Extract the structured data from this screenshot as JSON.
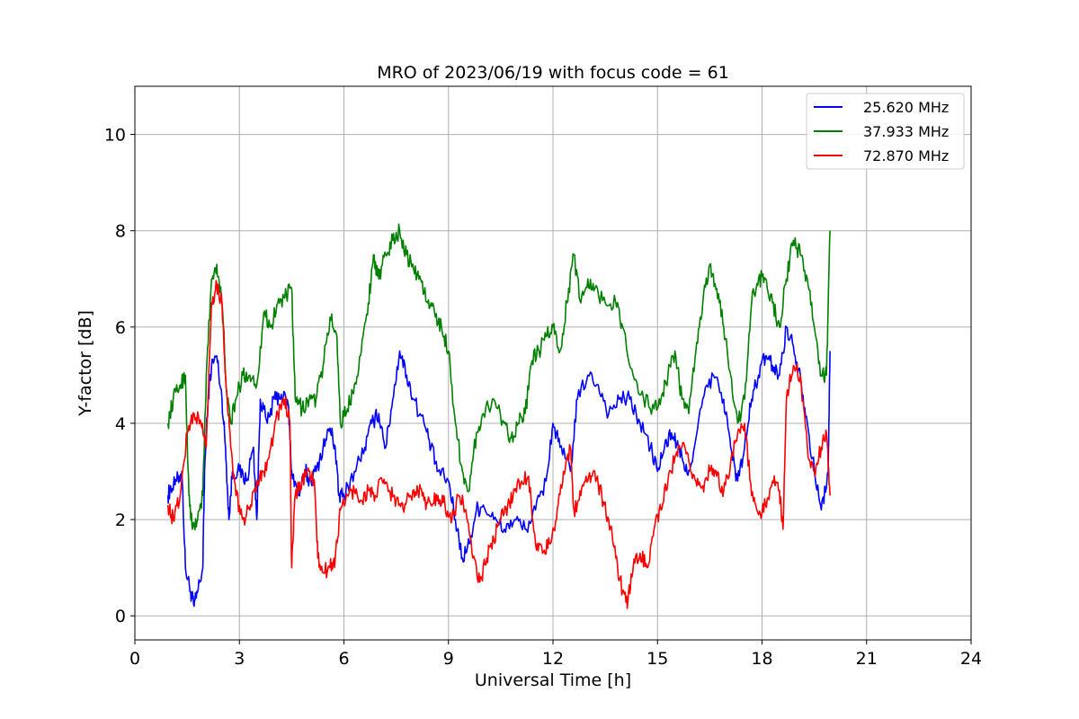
{
  "chart_data": {
    "type": "line",
    "title": "MRO of 2023/06/19 with focus code = 61",
    "xlabel": "Universal Time [h]",
    "ylabel": "Y-factor [dB]",
    "xlim": [
      0,
      24
    ],
    "ylim": [
      -0.5,
      11
    ],
    "xticks": [
      0,
      3,
      6,
      9,
      12,
      15,
      18,
      21,
      24
    ],
    "yticks": [
      0,
      2,
      4,
      6,
      8,
      10
    ],
    "grid": true,
    "legend_position": "top-right",
    "series": [
      {
        "name": "25.620 MHz",
        "color": "#0000ff",
        "points": [
          [
            0.95,
            2.5
          ],
          [
            1.0,
            2.6
          ],
          [
            1.2,
            2.8
          ],
          [
            1.35,
            3.0
          ],
          [
            1.45,
            1.0
          ],
          [
            1.6,
            0.5
          ],
          [
            1.7,
            0.2
          ],
          [
            1.8,
            0.5
          ],
          [
            1.95,
            1.0
          ],
          [
            2.0,
            3.0
          ],
          [
            2.1,
            4.5
          ],
          [
            2.2,
            5.2
          ],
          [
            2.35,
            5.4
          ],
          [
            2.5,
            4.5
          ],
          [
            2.6,
            3.5
          ],
          [
            2.7,
            2.0
          ],
          [
            2.8,
            3.0
          ],
          [
            3.0,
            3.0
          ],
          [
            3.2,
            2.8
          ],
          [
            3.4,
            3.5
          ],
          [
            3.5,
            2.0
          ],
          [
            3.6,
            4.5
          ],
          [
            3.8,
            4.0
          ],
          [
            4.0,
            4.5
          ],
          [
            4.2,
            4.6
          ],
          [
            4.4,
            4.4
          ],
          [
            4.5,
            3.0
          ],
          [
            4.7,
            2.5
          ],
          [
            4.9,
            3.0
          ],
          [
            5.0,
            2.8
          ],
          [
            5.2,
            3.0
          ],
          [
            5.4,
            3.5
          ],
          [
            5.6,
            3.9
          ],
          [
            5.75,
            3.5
          ],
          [
            5.85,
            2.5
          ],
          [
            6.0,
            2.5
          ],
          [
            6.3,
            3.0
          ],
          [
            6.6,
            3.5
          ],
          [
            6.8,
            4.0
          ],
          [
            7.0,
            4.2
          ],
          [
            7.2,
            3.5
          ],
          [
            7.4,
            4.5
          ],
          [
            7.6,
            5.5
          ],
          [
            7.8,
            5.0
          ],
          [
            8.0,
            4.5
          ],
          [
            8.3,
            4.0
          ],
          [
            8.5,
            3.5
          ],
          [
            8.7,
            3.0
          ],
          [
            9.0,
            2.8
          ],
          [
            9.2,
            2.0
          ],
          [
            9.4,
            1.2
          ],
          [
            9.6,
            1.5
          ],
          [
            9.8,
            2.2
          ],
          [
            10.0,
            2.3
          ],
          [
            10.3,
            2.0
          ],
          [
            10.6,
            1.8
          ],
          [
            10.9,
            2.0
          ],
          [
            11.2,
            1.8
          ],
          [
            11.5,
            2.2
          ],
          [
            11.8,
            2.8
          ],
          [
            12.0,
            4.0
          ],
          [
            12.2,
            3.5
          ],
          [
            12.5,
            3.0
          ],
          [
            12.7,
            4.5
          ],
          [
            13.0,
            5.0
          ],
          [
            13.3,
            4.8
          ],
          [
            13.6,
            4.2
          ],
          [
            13.9,
            4.5
          ],
          [
            14.2,
            4.5
          ],
          [
            14.5,
            4.0
          ],
          [
            14.8,
            3.5
          ],
          [
            15.0,
            3.0
          ],
          [
            15.2,
            3.5
          ],
          [
            15.4,
            3.8
          ],
          [
            15.6,
            3.5
          ],
          [
            15.8,
            3.0
          ],
          [
            16.0,
            3.2
          ],
          [
            16.3,
            4.5
          ],
          [
            16.6,
            5.0
          ],
          [
            16.9,
            4.5
          ],
          [
            17.1,
            3.5
          ],
          [
            17.3,
            2.8
          ],
          [
            17.5,
            3.5
          ],
          [
            17.7,
            4.5
          ],
          [
            17.9,
            5.0
          ],
          [
            18.1,
            5.4
          ],
          [
            18.3,
            5.2
          ],
          [
            18.5,
            5.0
          ],
          [
            18.7,
            6.0
          ],
          [
            18.9,
            5.6
          ],
          [
            19.1,
            5.0
          ],
          [
            19.3,
            4.0
          ],
          [
            19.5,
            3.0
          ],
          [
            19.7,
            2.2
          ],
          [
            19.9,
            3.0
          ],
          [
            19.95,
            5.5
          ]
        ]
      },
      {
        "name": "37.933 MHz",
        "color": "#008000",
        "points": [
          [
            0.95,
            4.0
          ],
          [
            1.1,
            4.5
          ],
          [
            1.3,
            4.8
          ],
          [
            1.45,
            5.0
          ],
          [
            1.55,
            2.5
          ],
          [
            1.65,
            1.8
          ],
          [
            1.8,
            2.0
          ],
          [
            1.95,
            2.5
          ],
          [
            2.05,
            5.0
          ],
          [
            2.2,
            7.0
          ],
          [
            2.35,
            7.3
          ],
          [
            2.5,
            6.5
          ],
          [
            2.65,
            4.5
          ],
          [
            2.75,
            4.0
          ],
          [
            2.9,
            4.5
          ],
          [
            3.1,
            5.0
          ],
          [
            3.3,
            5.0
          ],
          [
            3.5,
            4.8
          ],
          [
            3.7,
            6.3
          ],
          [
            3.9,
            6.0
          ],
          [
            4.1,
            6.5
          ],
          [
            4.3,
            6.6
          ],
          [
            4.5,
            6.8
          ],
          [
            4.6,
            4.5
          ],
          [
            4.8,
            4.3
          ],
          [
            5.0,
            4.5
          ],
          [
            5.2,
            4.5
          ],
          [
            5.4,
            5.2
          ],
          [
            5.6,
            6.2
          ],
          [
            5.8,
            5.8
          ],
          [
            5.9,
            4.0
          ],
          [
            6.1,
            4.3
          ],
          [
            6.3,
            4.8
          ],
          [
            6.5,
            5.5
          ],
          [
            6.7,
            6.5
          ],
          [
            6.85,
            7.5
          ],
          [
            7.0,
            7.0
          ],
          [
            7.2,
            7.5
          ],
          [
            7.4,
            7.8
          ],
          [
            7.6,
            8.0
          ],
          [
            7.8,
            7.5
          ],
          [
            8.0,
            7.2
          ],
          [
            8.2,
            7.0
          ],
          [
            8.4,
            6.5
          ],
          [
            8.6,
            6.3
          ],
          [
            8.8,
            6.0
          ],
          [
            9.0,
            5.5
          ],
          [
            9.2,
            4.0
          ],
          [
            9.4,
            3.0
          ],
          [
            9.6,
            2.6
          ],
          [
            9.8,
            3.8
          ],
          [
            10.0,
            4.2
          ],
          [
            10.3,
            4.5
          ],
          [
            10.6,
            4.0
          ],
          [
            10.8,
            3.7
          ],
          [
            11.0,
            4.0
          ],
          [
            11.2,
            4.2
          ],
          [
            11.4,
            5.3
          ],
          [
            11.6,
            5.5
          ],
          [
            11.8,
            5.8
          ],
          [
            12.0,
            6.0
          ],
          [
            12.2,
            5.5
          ],
          [
            12.4,
            6.5
          ],
          [
            12.6,
            7.5
          ],
          [
            12.8,
            6.5
          ],
          [
            13.0,
            7.0
          ],
          [
            13.2,
            6.8
          ],
          [
            13.5,
            6.5
          ],
          [
            13.8,
            6.5
          ],
          [
            14.0,
            6.0
          ],
          [
            14.3,
            5.0
          ],
          [
            14.6,
            4.5
          ],
          [
            14.9,
            4.3
          ],
          [
            15.1,
            4.5
          ],
          [
            15.3,
            5.0
          ],
          [
            15.5,
            5.5
          ],
          [
            15.7,
            4.5
          ],
          [
            15.9,
            4.2
          ],
          [
            16.1,
            5.5
          ],
          [
            16.3,
            6.5
          ],
          [
            16.5,
            7.3
          ],
          [
            16.7,
            6.8
          ],
          [
            16.9,
            6.0
          ],
          [
            17.1,
            5.0
          ],
          [
            17.3,
            4.0
          ],
          [
            17.5,
            4.5
          ],
          [
            17.7,
            6.5
          ],
          [
            17.9,
            7.0
          ],
          [
            18.1,
            7.0
          ],
          [
            18.3,
            6.5
          ],
          [
            18.5,
            6.0
          ],
          [
            18.7,
            7.0
          ],
          [
            18.9,
            7.8
          ],
          [
            19.1,
            7.5
          ],
          [
            19.3,
            7.0
          ],
          [
            19.5,
            6.0
          ],
          [
            19.7,
            5.0
          ],
          [
            19.85,
            5.0
          ],
          [
            19.95,
            8.0
          ]
        ]
      },
      {
        "name": "72.870 MHz",
        "color": "#ff0000",
        "points": [
          [
            0.95,
            2.3
          ],
          [
            1.1,
            2.0
          ],
          [
            1.3,
            2.5
          ],
          [
            1.5,
            3.8
          ],
          [
            1.7,
            4.2
          ],
          [
            1.9,
            4.0
          ],
          [
            2.05,
            3.5
          ],
          [
            2.2,
            6.5
          ],
          [
            2.35,
            6.9
          ],
          [
            2.5,
            6.5
          ],
          [
            2.6,
            5.0
          ],
          [
            2.75,
            3.5
          ],
          [
            2.9,
            2.5
          ],
          [
            3.1,
            2.0
          ],
          [
            3.3,
            2.2
          ],
          [
            3.5,
            2.8
          ],
          [
            3.7,
            3.0
          ],
          [
            3.9,
            3.5
          ],
          [
            4.1,
            4.2
          ],
          [
            4.3,
            4.5
          ],
          [
            4.45,
            4.0
          ],
          [
            4.5,
            1.0
          ],
          [
            4.6,
            2.5
          ],
          [
            4.8,
            2.8
          ],
          [
            5.0,
            3.0
          ],
          [
            5.15,
            2.8
          ],
          [
            5.25,
            1.2
          ],
          [
            5.4,
            0.9
          ],
          [
            5.6,
            1.0
          ],
          [
            5.75,
            1.2
          ],
          [
            5.9,
            2.2
          ],
          [
            6.1,
            2.5
          ],
          [
            6.3,
            2.6
          ],
          [
            6.5,
            2.4
          ],
          [
            6.7,
            2.6
          ],
          [
            6.9,
            2.5
          ],
          [
            7.1,
            2.8
          ],
          [
            7.3,
            2.6
          ],
          [
            7.5,
            2.4
          ],
          [
            7.7,
            2.2
          ],
          [
            7.9,
            2.5
          ],
          [
            8.1,
            2.7
          ],
          [
            8.3,
            2.4
          ],
          [
            8.5,
            2.3
          ],
          [
            8.7,
            2.5
          ],
          [
            8.9,
            2.3
          ],
          [
            9.1,
            2.0
          ],
          [
            9.3,
            2.5
          ],
          [
            9.5,
            2.2
          ],
          [
            9.7,
            1.2
          ],
          [
            9.9,
            0.7
          ],
          [
            10.1,
            1.2
          ],
          [
            10.3,
            1.6
          ],
          [
            10.5,
            2.0
          ],
          [
            10.7,
            2.3
          ],
          [
            10.9,
            2.6
          ],
          [
            11.1,
            2.8
          ],
          [
            11.3,
            2.9
          ],
          [
            11.5,
            1.5
          ],
          [
            11.7,
            1.3
          ],
          [
            11.9,
            1.5
          ],
          [
            12.1,
            2.0
          ],
          [
            12.3,
            3.0
          ],
          [
            12.5,
            3.5
          ],
          [
            12.6,
            2.2
          ],
          [
            12.8,
            2.5
          ],
          [
            13.0,
            2.8
          ],
          [
            13.2,
            3.0
          ],
          [
            13.4,
            2.5
          ],
          [
            13.6,
            2.0
          ],
          [
            13.8,
            1.2
          ],
          [
            14.0,
            0.5
          ],
          [
            14.15,
            0.3
          ],
          [
            14.3,
            1.0
          ],
          [
            14.5,
            1.3
          ],
          [
            14.7,
            1.0
          ],
          [
            14.9,
            1.8
          ],
          [
            15.1,
            2.2
          ],
          [
            15.3,
            2.8
          ],
          [
            15.5,
            3.3
          ],
          [
            15.7,
            3.5
          ],
          [
            15.9,
            3.2
          ],
          [
            16.1,
            2.8
          ],
          [
            16.3,
            2.7
          ],
          [
            16.5,
            3.0
          ],
          [
            16.7,
            2.9
          ],
          [
            16.9,
            2.6
          ],
          [
            17.1,
            3.2
          ],
          [
            17.3,
            3.8
          ],
          [
            17.5,
            4.0
          ],
          [
            17.7,
            2.5
          ],
          [
            17.9,
            2.1
          ],
          [
            18.1,
            2.3
          ],
          [
            18.3,
            2.8
          ],
          [
            18.5,
            2.6
          ],
          [
            18.6,
            1.8
          ],
          [
            18.7,
            4.5
          ],
          [
            18.9,
            5.2
          ],
          [
            19.1,
            5.0
          ],
          [
            19.3,
            3.5
          ],
          [
            19.5,
            3.0
          ],
          [
            19.7,
            3.5
          ],
          [
            19.85,
            3.8
          ],
          [
            19.95,
            2.5
          ]
        ]
      }
    ]
  }
}
